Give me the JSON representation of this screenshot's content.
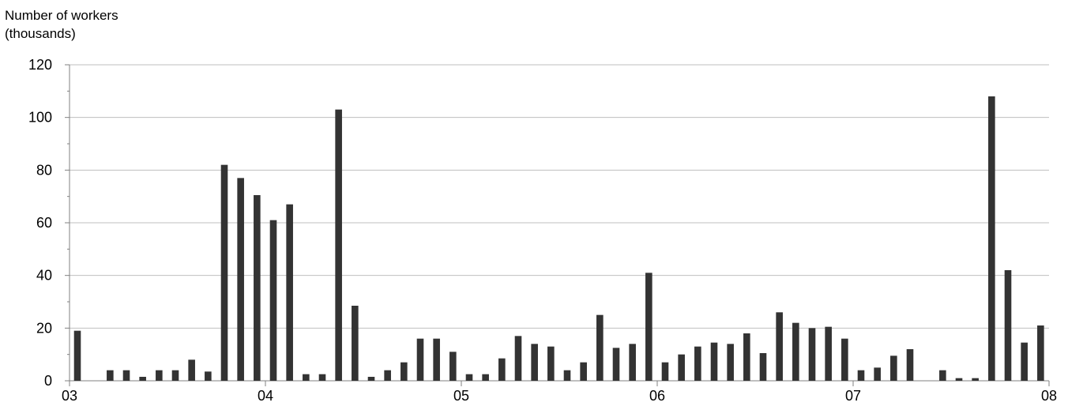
{
  "chart_data": {
    "type": "bar",
    "ylabel_lines": [
      "Number of workers",
      "(thousands)"
    ],
    "xlabel": "",
    "ylim": [
      0,
      120
    ],
    "yticks": [
      0,
      20,
      40,
      60,
      80,
      100,
      120
    ],
    "xlim": [
      2003,
      2008
    ],
    "xticks": [
      {
        "value": 2003,
        "label": "03"
      },
      {
        "value": 2004,
        "label": "04"
      },
      {
        "value": 2005,
        "label": "05"
      },
      {
        "value": 2006,
        "label": "06"
      },
      {
        "value": 2007,
        "label": "07"
      },
      {
        "value": 2008,
        "label": "08"
      }
    ],
    "grid": true,
    "bar_color": "#333333",
    "grid_color": "#bfbfbf",
    "x": [
      2003.0,
      2003.0833,
      2003.1667,
      2003.25,
      2003.3333,
      2003.4167,
      2003.5,
      2003.5833,
      2003.6667,
      2003.75,
      2003.8333,
      2003.9167,
      2004.0,
      2004.0833,
      2004.1667,
      2004.25,
      2004.3333,
      2004.4167,
      2004.5,
      2004.5833,
      2004.6667,
      2004.75,
      2004.8333,
      2004.9167,
      2005.0,
      2005.0833,
      2005.1667,
      2005.25,
      2005.3333,
      2005.4167,
      2005.5,
      2005.5833,
      2005.6667,
      2005.75,
      2005.8333,
      2005.9167,
      2006.0,
      2006.0833,
      2006.1667,
      2006.25,
      2006.3333,
      2006.4167,
      2006.5,
      2006.5833,
      2006.6667,
      2006.75,
      2006.8333,
      2006.9167,
      2007.0,
      2007.0833,
      2007.1667,
      2007.25,
      2007.3333,
      2007.4167,
      2007.5,
      2007.5833,
      2007.6667,
      2007.75,
      2007.8333,
      2007.9167
    ],
    "values": [
      19,
      0,
      4,
      4,
      1.5,
      4,
      4,
      8,
      3.5,
      82,
      77,
      70.5,
      61,
      67,
      2.5,
      2.5,
      103,
      28.5,
      1.5,
      4,
      7,
      16,
      16,
      11,
      2.5,
      2.5,
      8.5,
      17,
      14,
      13,
      4,
      7,
      25,
      12.5,
      14,
      41,
      7,
      10,
      13,
      14.5,
      14,
      18,
      10.5,
      26,
      22,
      20,
      20.5,
      16,
      4,
      5,
      9.5,
      12,
      0,
      4,
      1,
      1,
      108,
      42,
      14.5,
      21
    ]
  }
}
